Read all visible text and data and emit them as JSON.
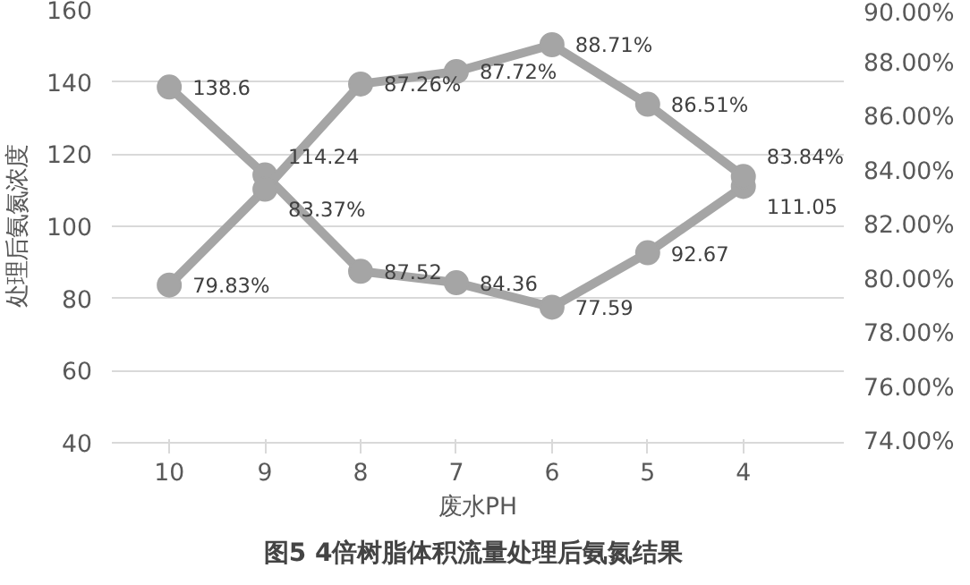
{
  "chart_data": {
    "type": "line",
    "title": "图5  4倍树脂体积流量处理后氨氮结果",
    "xlabel": "废水PH",
    "ylabel": "处理后氨氮浓度",
    "categories": [
      "10",
      "9",
      "8",
      "7",
      "6",
      "5",
      "4"
    ],
    "series": [
      {
        "color": "#a5a5a5",
        "values": [
          138.6,
          114.24,
          87.52,
          84.36,
          77.59,
          92.67,
          111.05
        ],
        "value_labels": [
          "138.6",
          "114.24",
          "87.52",
          "84.36",
          "77.59",
          "92.67",
          "111.05"
        ]
      },
      {
        "color": "#a5a5a5",
        "axis": "y2",
        "values": [
          79.83,
          83.37,
          87.26,
          87.72,
          88.71,
          86.51,
          83.84
        ],
        "value_labels": [
          "79.83%",
          "83.37%",
          "87.26%",
          "87.72%",
          "88.71%",
          "86.51%",
          "83.84%"
        ]
      }
    ],
    "ylim": [
      40,
      160
    ],
    "yticks": [
      40,
      60,
      80,
      100,
      120,
      140,
      160
    ],
    "y2lim": [
      74,
      90
    ],
    "y2ticks": [
      {
        "value": 74,
        "label": "74.00%"
      },
      {
        "value": 76,
        "label": "76.00%"
      },
      {
        "value": 78,
        "label": "78.00%"
      },
      {
        "value": 80,
        "label": "80.00%"
      },
      {
        "value": 82,
        "label": "82.00%"
      },
      {
        "value": 84,
        "label": "84.00%"
      },
      {
        "value": 86,
        "label": "86.00%"
      },
      {
        "value": 88,
        "label": "88.00%"
      },
      {
        "value": 90,
        "label": "90.00%"
      }
    ],
    "grid": "y",
    "marker": "circle",
    "line_style": "solid"
  }
}
